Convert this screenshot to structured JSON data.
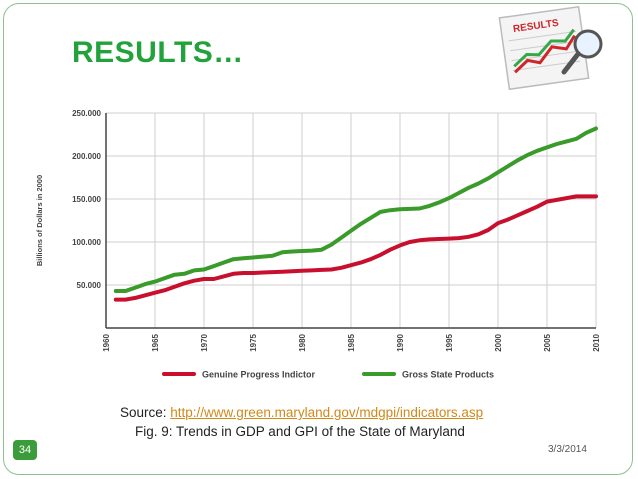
{
  "slide": {
    "title": "RESULTS…",
    "source_prefix": "Source: ",
    "source_url": "http://www.green.maryland.gov/mdgpi/indicators.asp",
    "caption": "Fig. 9: Trends in GDP and GPI of the State of Maryland",
    "slide_number": "34",
    "date": "3/3/2014"
  },
  "logo": {
    "text": "RESULTS"
  },
  "colors": {
    "title": "#22a23a",
    "gpi": "#c8102e",
    "gsp": "#3a9a2a"
  },
  "chart_data": {
    "type": "line",
    "ylabel": "Billions of Dollars in 2000",
    "ylim": [
      0,
      250000
    ],
    "xlim": [
      1960,
      2010
    ],
    "y_ticks": [
      50000,
      100000,
      150000,
      200000,
      250000
    ],
    "y_tick_labels": [
      "50.000",
      "100.000",
      "150.000",
      "200.000",
      "250.000"
    ],
    "x_ticks": [
      1960,
      1965,
      1970,
      1975,
      1980,
      1985,
      1990,
      1995,
      2000,
      2005,
      2010
    ],
    "x_tick_labels": [
      "1960",
      "1965",
      "1970",
      "1975",
      "1980",
      "1985",
      "1990",
      "1995",
      "2000",
      "2005",
      "2010"
    ],
    "grid": true,
    "legend_position": "bottom",
    "series": [
      {
        "name": "Genuine Progress Indictor",
        "x": [
          1961,
          1962,
          1963,
          1964,
          1965,
          1966,
          1967,
          1968,
          1969,
          1970,
          1971,
          1972,
          1973,
          1974,
          1975,
          1976,
          1977,
          1978,
          1979,
          1980,
          1981,
          1982,
          1983,
          1984,
          1985,
          1986,
          1987,
          1988,
          1989,
          1990,
          1991,
          1992,
          1993,
          1994,
          1995,
          1996,
          1997,
          1998,
          1999,
          2000,
          2001,
          2002,
          2003,
          2004,
          2005,
          2006,
          2007,
          2008,
          2009,
          2010
        ],
        "values": [
          33000,
          33000,
          35000,
          38000,
          41000,
          44000,
          48000,
          52000,
          55000,
          57000,
          57000,
          60000,
          63000,
          64000,
          64000,
          64500,
          65000,
          65500,
          66000,
          66500,
          67000,
          67500,
          68000,
          70000,
          73000,
          76000,
          80000,
          85000,
          91000,
          96000,
          100000,
          102000,
          103000,
          103500,
          104000,
          104500,
          106000,
          109000,
          114000,
          122000,
          126000,
          131000,
          136000,
          141000,
          147000,
          149000,
          151000,
          153000,
          153000,
          153000
        ]
      },
      {
        "name": "Gross State Products",
        "x": [
          1961,
          1962,
          1963,
          1964,
          1965,
          1966,
          1967,
          1968,
          1969,
          1970,
          1971,
          1972,
          1973,
          1974,
          1975,
          1976,
          1977,
          1978,
          1979,
          1980,
          1981,
          1982,
          1983,
          1984,
          1985,
          1986,
          1987,
          1988,
          1989,
          1990,
          1991,
          1992,
          1993,
          1994,
          1995,
          1996,
          1997,
          1998,
          1999,
          2000,
          2001,
          2002,
          2003,
          2004,
          2005,
          2006,
          2007,
          2008,
          2009,
          2010
        ],
        "values": [
          43000,
          43000,
          47000,
          51000,
          54000,
          58000,
          62000,
          63000,
          67000,
          68000,
          72000,
          76000,
          80000,
          81000,
          82000,
          83000,
          84000,
          88000,
          89000,
          89500,
          90000,
          91000,
          97000,
          105000,
          113000,
          121000,
          128000,
          135000,
          137000,
          138000,
          138500,
          139000,
          142000,
          146000,
          151000,
          157000,
          163000,
          168000,
          174000,
          181000,
          188000,
          195000,
          201000,
          206000,
          210000,
          214000,
          217000,
          220000,
          227000,
          232000
        ]
      }
    ]
  }
}
